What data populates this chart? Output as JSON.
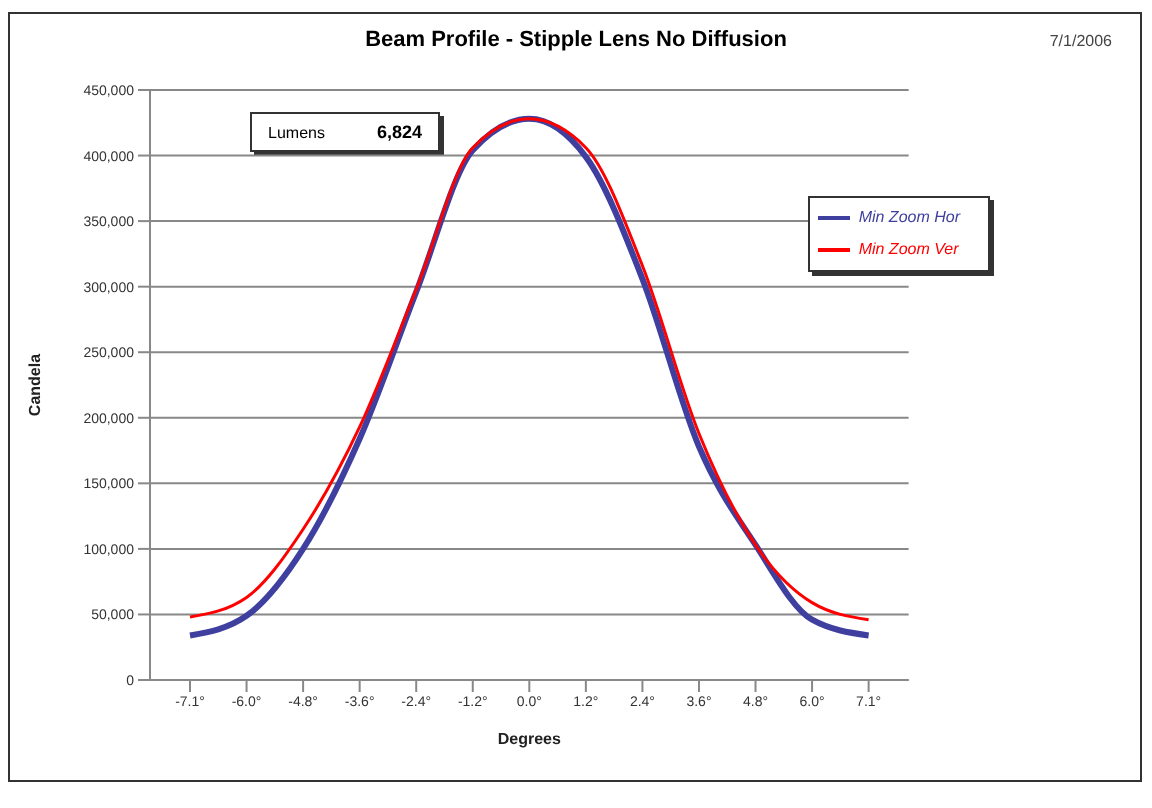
{
  "chart_data": {
    "type": "line",
    "title": "Beam Profile - Stipple Lens No Diffusion",
    "xlabel": "Degrees",
    "ylabel": "Candela",
    "annotations": [
      "7/1/2006",
      "Lumens",
      "6,824"
    ],
    "categories": [
      "-7.1°",
      "-6.0°",
      "-4.8°",
      "-3.6°",
      "-2.4°",
      "-1.2°",
      "0.0°",
      "1.2°",
      "2.4°",
      "3.6°",
      "4.8°",
      "6.0°",
      "7.1°"
    ],
    "series": [
      {
        "name": "Min Zoom Hor",
        "color": "#3f3f9f",
        "values": [
          34000,
          49000,
          100000,
          184000,
          296000,
          404000,
          428000,
          399000,
          306000,
          178000,
          103000,
          46000,
          34000
        ]
      },
      {
        "name": "Min Zoom Ver",
        "color": "#ff0000",
        "values": [
          48000,
          63000,
          115000,
          193000,
          298000,
          406000,
          428000,
          406000,
          316000,
          188000,
          103000,
          59000,
          46000
        ]
      }
    ],
    "ylim": [
      0,
      450000
    ],
    "yticks": [
      0,
      {
        "value": 50000,
        "label": "50,000"
      },
      {
        "value": 100000,
        "label": "100,000"
      },
      {
        "value": 150000,
        "label": "150,000"
      },
      {
        "value": 200000,
        "label": "200,000"
      },
      {
        "value": 250000,
        "label": "250,000"
      },
      {
        "value": 300000,
        "label": "300,000"
      },
      {
        "value": 350000,
        "label": "350,000"
      },
      {
        "value": 400000,
        "label": "400,000"
      },
      {
        "value": 450000,
        "label": "450,000"
      }
    ],
    "grid": "y",
    "legend": "top right",
    "marker": "none",
    "line_style": "solid"
  }
}
